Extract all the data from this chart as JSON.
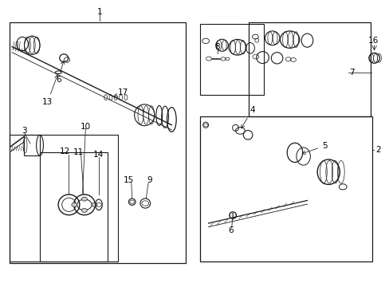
{
  "bg_color": "#ffffff",
  "line_color": "#1a1a1a",
  "fig_width": 4.89,
  "fig_height": 3.6,
  "dpi": 100,
  "font_size": 7.5
}
